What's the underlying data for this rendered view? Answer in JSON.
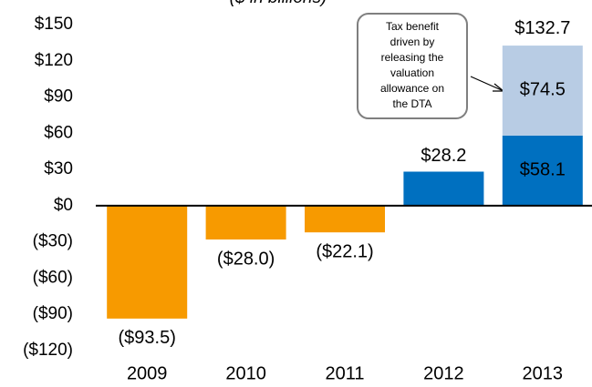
{
  "chart_data": {
    "type": "bar",
    "subtitle": "($ in billions)",
    "categories": [
      "2009",
      "2010",
      "2011",
      "2012",
      "2013"
    ],
    "series": [
      {
        "colors": [
          "#f79a00",
          "#f79a00",
          "#f79a00",
          "#0070c0",
          "#0070c0"
        ],
        "values": [
          -93.5,
          -28.0,
          -22.1,
          28.2,
          58.1
        ],
        "value_labels": [
          "($93.5)",
          "($28.0)",
          "($22.1)",
          "$28.2",
          "$58.1"
        ]
      },
      {
        "color": "#b8cce4",
        "values": [
          null,
          null,
          null,
          null,
          74.5
        ],
        "value_labels": [
          null,
          null,
          null,
          null,
          "$74.5"
        ]
      }
    ],
    "total_values": [
      null,
      null,
      null,
      null,
      132.7
    ],
    "total_labels": [
      null,
      null,
      null,
      null,
      "$132.7"
    ],
    "ylim": [
      -120,
      150
    ],
    "yticks": [
      {
        "value": -120,
        "label": "($120)"
      },
      {
        "value": -90,
        "label": "($90)"
      },
      {
        "value": -60,
        "label": "($60)"
      },
      {
        "value": -30,
        "label": "($30)"
      },
      {
        "value": 0,
        "label": "$0"
      },
      {
        "value": 30,
        "label": "$30"
      },
      {
        "value": 60,
        "label": "$60"
      },
      {
        "value": 90,
        "label": "$90"
      },
      {
        "value": 120,
        "label": "$120"
      },
      {
        "value": 150,
        "label": "$150"
      }
    ],
    "annotation": {
      "lines": [
        "Tax benefit",
        "driven by",
        "releasing the",
        "valuation",
        "allowance on",
        "the DTA"
      ]
    }
  }
}
